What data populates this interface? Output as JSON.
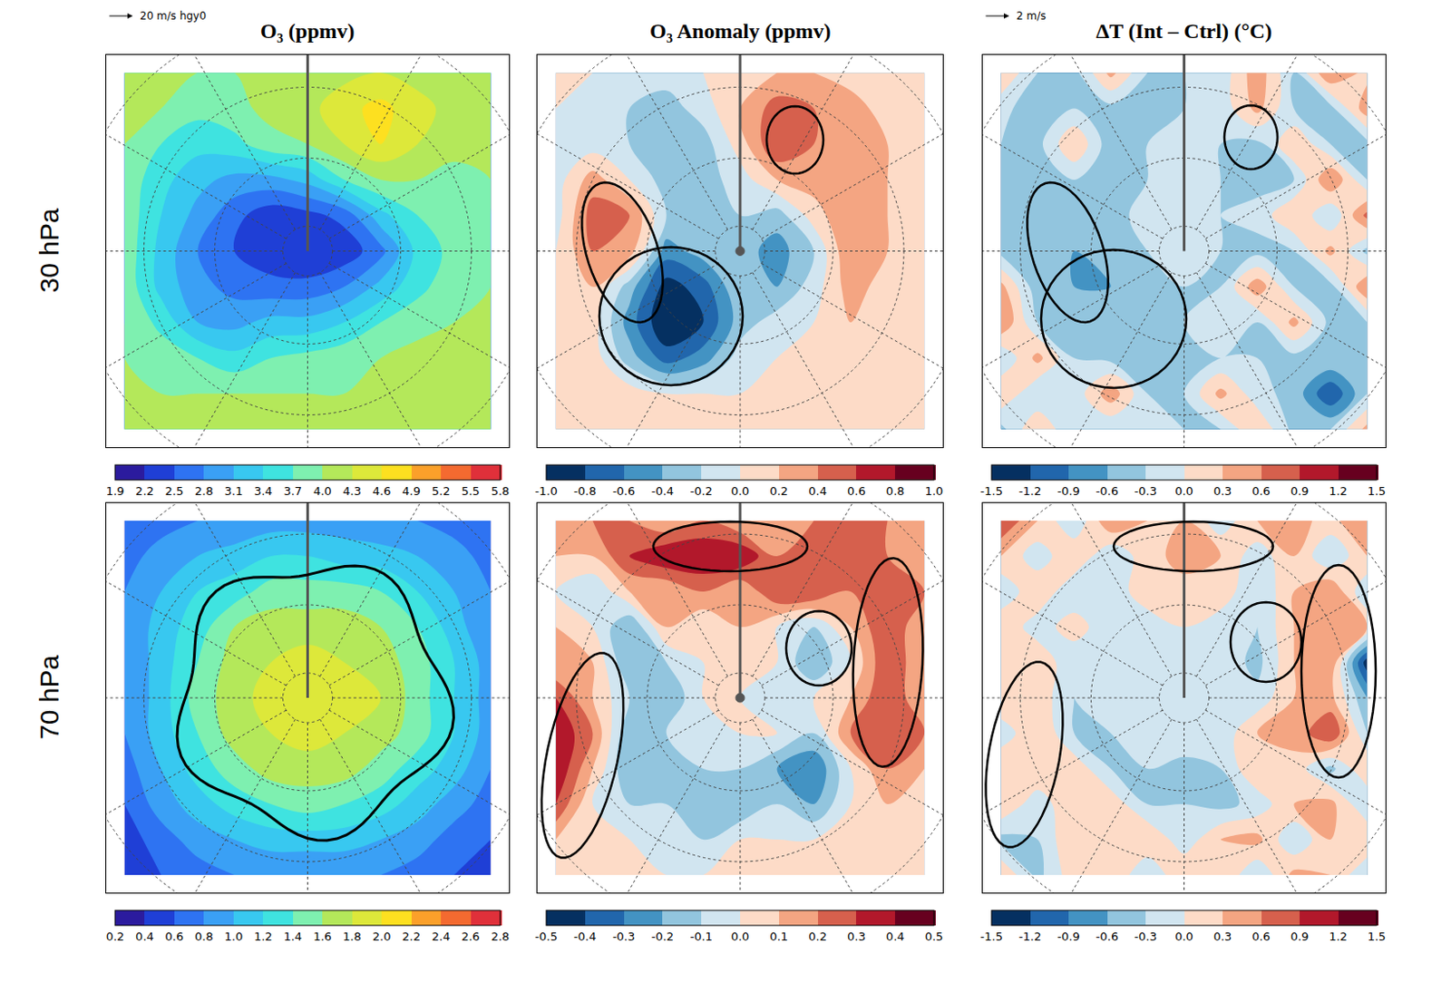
{
  "column_titles": [
    "O₃ (ppmv)",
    "O₃ Anomaly (ppmv)",
    "ΔT (Int – Ctrl) (°C)"
  ],
  "row_labels": [
    "30 hPa",
    "70 hPa"
  ],
  "vector_keys": [
    "20 m/s hgy0",
    "2 m/s"
  ],
  "chart_data": [
    {
      "type": "contour",
      "tick_labels": false,
      "zlim": [
        1.9,
        5.8
      ],
      "zticks": [
        1.9,
        2.2,
        2.5,
        2.8,
        3.1,
        3.4,
        3.7,
        {
          "value": 4,
          "label": "4.0"
        },
        4.3,
        4.6,
        4.9,
        5.2,
        5.5,
        5.8
      ],
      "colors": [
        "#2b1b9e",
        "#1f3fd6",
        "#2e73f2",
        "#3aa0f5",
        "#38c8f0",
        "#3fe3e0",
        "#7ef0b0",
        "#b4e85a",
        "#dde83a",
        "#fde020",
        "#fba02a",
        "#f46a30",
        "#e0303a"
      ],
      "z": [
        [
          4.1,
          4.1,
          4.0,
          4.0,
          4.1,
          4.2,
          4.2,
          4.3,
          4.2,
          4.1,
          4.1
        ],
        [
          4.0,
          4.0,
          3.8,
          3.9,
          4.1,
          4.2,
          4.5,
          4.7,
          4.4,
          4.2,
          4.1
        ],
        [
          4.0,
          3.7,
          3.5,
          3.6,
          3.9,
          4.0,
          4.3,
          4.6,
          4.3,
          4.1,
          4.0
        ],
        [
          3.9,
          3.5,
          3.2,
          3.0,
          3.0,
          3.2,
          3.7,
          4.0,
          4.0,
          3.9,
          4.0
        ],
        [
          3.9,
          3.4,
          3.0,
          2.6,
          2.3,
          2.4,
          2.6,
          3.3,
          3.7,
          3.8,
          4.0
        ],
        [
          3.9,
          3.3,
          2.8,
          2.5,
          2.3,
          2.2,
          2.3,
          2.7,
          3.5,
          3.8,
          4.0
        ],
        [
          3.9,
          3.3,
          2.9,
          2.7,
          2.6,
          2.6,
          2.8,
          3.2,
          3.6,
          3.9,
          4.0
        ],
        [
          4.0,
          3.6,
          3.1,
          3.0,
          3.2,
          3.2,
          3.4,
          3.7,
          3.9,
          4.0,
          4.1
        ],
        [
          4.0,
          3.9,
          3.7,
          3.5,
          3.7,
          3.8,
          3.9,
          4.0,
          4.1,
          4.1,
          4.1
        ],
        [
          4.1,
          4.0,
          4.0,
          4.0,
          4.0,
          4.0,
          4.0,
          4.0,
          4.1,
          4.1,
          4.1
        ],
        [
          4.0,
          4.1,
          4.1,
          4.1,
          4.1,
          4.1,
          4.1,
          4.1,
          4.1,
          4.1,
          4.0
        ]
      ]
    },
    {
      "type": "contour",
      "tick_labels": false,
      "zlim": [
        -1,
        1
      ],
      "zticks": [
        {
          "value": -1,
          "label": "-1.0"
        },
        -0.8,
        -0.6,
        -0.4,
        -0.2,
        {
          "value": 0,
          "label": "0.0"
        },
        0.2,
        0.4,
        0.6,
        0.8,
        {
          "value": 1,
          "label": "1.0"
        }
      ],
      "colors": [
        "#053061",
        "#2166ac",
        "#4393c3",
        "#92c5de",
        "#d1e5f0",
        "#fddbc7",
        "#f4a582",
        "#d6604d",
        "#b2182b",
        "#67001f"
      ],
      "z": [
        [
          0.1,
          0.0,
          -0.1,
          -0.1,
          0.0,
          0.1,
          0.2,
          0.2,
          0.1,
          0.1,
          0.1
        ],
        [
          0.0,
          -0.1,
          -0.2,
          -0.3,
          -0.1,
          0.2,
          0.5,
          0.4,
          0.3,
          0.1,
          0.1
        ],
        [
          -0.1,
          -0.1,
          -0.2,
          -0.4,
          -0.3,
          0.1,
          0.6,
          0.4,
          0.3,
          0.2,
          0.1
        ],
        [
          -0.1,
          0.3,
          0.0,
          -0.3,
          -0.3,
          -0.1,
          0.2,
          0.3,
          0.3,
          0.2,
          0.0
        ],
        [
          -0.1,
          0.5,
          0.4,
          -0.2,
          -0.3,
          -0.2,
          -0.3,
          0.1,
          0.4,
          0.2,
          0.0
        ],
        [
          0.0,
          0.4,
          0.3,
          -0.5,
          -0.3,
          -0.3,
          -0.5,
          -0.2,
          0.4,
          0.2,
          0.0
        ],
        [
          0.0,
          0.2,
          -0.3,
          -0.9,
          -0.7,
          -0.2,
          -0.4,
          -0.1,
          0.3,
          0.1,
          0.0
        ],
        [
          0.1,
          0.1,
          -0.5,
          -1.0,
          -0.8,
          -0.3,
          -0.1,
          0.0,
          0.2,
          0.1,
          0.1
        ],
        [
          0.1,
          0.1,
          -0.3,
          -0.7,
          -0.5,
          -0.1,
          0.0,
          0.0,
          0.1,
          0.1,
          0.1
        ],
        [
          0.1,
          0.1,
          0.1,
          0.0,
          0.0,
          0.0,
          0.0,
          0.1,
          0.1,
          0.1,
          0.1
        ],
        [
          0.1,
          0.1,
          0.1,
          0.1,
          0.0,
          0.0,
          0.1,
          0.1,
          0.1,
          0.1,
          0.1
        ]
      ]
    },
    {
      "type": "contour",
      "tick_labels": false,
      "zlim": [
        -1.5,
        1.5
      ],
      "zticks": [
        -1.5,
        -1.2,
        -0.9,
        -0.6,
        -0.3,
        {
          "value": 0,
          "label": "0.0"
        },
        0.3,
        0.6,
        0.9,
        1.2,
        1.5
      ],
      "colors": [
        "#053061",
        "#2166ac",
        "#4393c3",
        "#92c5de",
        "#d1e5f0",
        "#fddbc7",
        "#f4a582",
        "#d6604d",
        "#b2182b",
        "#67001f"
      ],
      "z": [
        [
          0.3,
          -0.3,
          -0.4,
          0.4,
          -0.3,
          -0.3,
          -0.2,
          0.5,
          -0.3,
          0.6,
          0.2
        ],
        [
          -0.2,
          -0.5,
          -0.3,
          -0.4,
          -0.4,
          -0.3,
          -0.2,
          0.4,
          -0.3,
          -0.4,
          0.5
        ],
        [
          -0.3,
          -0.4,
          0.3,
          -0.5,
          -0.3,
          -0.2,
          -0.3,
          -0.4,
          0.3,
          -0.3,
          -0.4
        ],
        [
          -0.4,
          -0.3,
          -0.3,
          -0.4,
          -0.3,
          -0.2,
          -0.3,
          -0.4,
          -0.3,
          0.6,
          -0.3
        ],
        [
          -0.3,
          -0.4,
          -0.5,
          -0.4,
          -0.2,
          -0.2,
          -0.3,
          -0.2,
          0.3,
          -0.3,
          0.7
        ],
        [
          -0.4,
          -0.5,
          -0.6,
          -0.5,
          -0.3,
          -0.2,
          -0.3,
          -0.4,
          -0.3,
          0.4,
          -0.4
        ],
        [
          0.4,
          -0.5,
          -0.6,
          -0.6,
          -0.4,
          -0.3,
          -0.3,
          0.5,
          -0.3,
          -0.4,
          0.6
        ],
        [
          0.6,
          -0.3,
          -0.4,
          -0.5,
          -0.6,
          -0.3,
          -0.2,
          -0.3,
          0.4,
          -0.4,
          -0.3
        ],
        [
          -0.3,
          0.4,
          -0.3,
          -0.4,
          -0.3,
          -0.4,
          -0.3,
          -0.3,
          -0.4,
          -0.3,
          -0.5
        ],
        [
          0.3,
          -0.3,
          -0.2,
          0.5,
          -0.3,
          -0.3,
          0.4,
          -0.2,
          -0.4,
          -1.2,
          -0.3
        ],
        [
          -0.4,
          0.3,
          -0.3,
          -0.3,
          -0.2,
          -0.3,
          -0.3,
          0.3,
          -0.4,
          -0.3,
          0.4
        ]
      ]
    },
    {
      "type": "contour",
      "tick_labels": false,
      "zlim": [
        0.2,
        2.8
      ],
      "zticks": [
        0.2,
        0.4,
        0.6,
        0.8,
        {
          "value": 1,
          "label": "1.0"
        },
        1.2,
        1.4,
        1.6,
        1.8,
        {
          "value": 2,
          "label": "2.0"
        },
        2.2,
        2.4,
        2.6,
        2.8
      ],
      "colors": [
        "#2b1b9e",
        "#1f3fd6",
        "#2e73f2",
        "#3aa0f5",
        "#38c8f0",
        "#3fe3e0",
        "#7ef0b0",
        "#b4e85a",
        "#dde83a",
        "#fde020",
        "#fba02a",
        "#f46a30",
        "#e0303a"
      ],
      "z": [
        [
          0.7,
          0.7,
          0.8,
          0.8,
          0.9,
          0.9,
          0.9,
          0.8,
          0.8,
          0.7,
          0.7
        ],
        [
          0.7,
          0.9,
          1.0,
          1.1,
          1.2,
          1.2,
          1.1,
          1.1,
          1.0,
          0.9,
          0.7
        ],
        [
          0.8,
          1.0,
          1.2,
          1.3,
          1.5,
          1.5,
          1.5,
          1.4,
          1.2,
          1.0,
          0.8
        ],
        [
          0.8,
          1.1,
          1.3,
          1.6,
          1.7,
          1.7,
          1.7,
          1.6,
          1.4,
          1.1,
          0.8
        ],
        [
          0.8,
          1.1,
          1.4,
          1.7,
          1.8,
          1.9,
          1.8,
          1.7,
          1.5,
          1.2,
          0.9
        ],
        [
          0.8,
          1.1,
          1.5,
          1.7,
          1.9,
          2.0,
          1.9,
          1.8,
          1.5,
          1.2,
          0.9
        ],
        [
          0.8,
          1.1,
          1.4,
          1.7,
          1.8,
          1.9,
          1.8,
          1.7,
          1.5,
          1.2,
          0.9
        ],
        [
          0.7,
          1.0,
          1.3,
          1.5,
          1.7,
          1.7,
          1.7,
          1.5,
          1.3,
          1.1,
          0.8
        ],
        [
          0.6,
          0.9,
          1.1,
          1.3,
          1.4,
          1.5,
          1.4,
          1.3,
          1.1,
          0.9,
          0.7
        ],
        [
          0.5,
          0.7,
          0.9,
          1.0,
          1.1,
          1.1,
          1.1,
          1.0,
          0.9,
          0.7,
          0.6
        ],
        [
          0.5,
          0.6,
          0.7,
          0.8,
          0.8,
          0.8,
          0.8,
          0.8,
          0.7,
          0.6,
          0.5
        ]
      ]
    },
    {
      "type": "contour",
      "tick_labels": false,
      "zlim": [
        -0.5,
        0.5
      ],
      "zticks": [
        -0.5,
        -0.4,
        -0.3,
        -0.2,
        -0.1,
        {
          "value": 0,
          "label": "0.0"
        },
        0.1,
        0.2,
        0.3,
        0.4,
        0.5
      ],
      "colors": [
        "#053061",
        "#2166ac",
        "#4393c3",
        "#92c5de",
        "#d1e5f0",
        "#fddbc7",
        "#f4a582",
        "#d6604d",
        "#b2182b",
        "#67001f"
      ],
      "z": [
        [
          0.1,
          0.2,
          0.2,
          0.1,
          0.2,
          0.1,
          0.1,
          0.2,
          0.2,
          0.2,
          0.1
        ],
        [
          0.1,
          0.1,
          0.3,
          0.4,
          0.4,
          0.4,
          0.2,
          0.2,
          0.3,
          0.2,
          0.1
        ],
        [
          0.0,
          -0.1,
          0.1,
          0.1,
          0.2,
          0.1,
          0.3,
          0.3,
          0.2,
          0.3,
          0.2
        ],
        [
          0.1,
          0.0,
          -0.2,
          0.1,
          0.0,
          0.1,
          0.0,
          -0.1,
          0.1,
          0.3,
          0.1
        ],
        [
          0.1,
          0.1,
          -0.2,
          -0.1,
          0.0,
          0.0,
          0.0,
          -0.2,
          0.0,
          0.3,
          0.1
        ],
        [
          0.3,
          0.1,
          -0.1,
          -0.2,
          0.0,
          0.0,
          -0.1,
          0.0,
          0.1,
          0.3,
          0.1
        ],
        [
          0.4,
          0.2,
          -0.2,
          -0.1,
          -0.1,
          0.0,
          0.0,
          -0.1,
          0.2,
          0.3,
          0.2
        ],
        [
          0.4,
          0.1,
          -0.2,
          -0.2,
          -0.1,
          -0.1,
          -0.2,
          -0.3,
          0.0,
          0.2,
          0.1
        ],
        [
          0.3,
          0.0,
          -0.1,
          -0.1,
          -0.2,
          -0.2,
          -0.1,
          -0.2,
          0.0,
          0.1,
          0.0
        ],
        [
          0.1,
          0.0,
          0.0,
          -0.1,
          -0.1,
          0.0,
          0.0,
          0.0,
          0.0,
          0.0,
          0.0
        ],
        [
          0.0,
          0.0,
          0.0,
          0.0,
          0.0,
          0.0,
          0.0,
          0.0,
          0.0,
          0.0,
          0.0
        ]
      ]
    },
    {
      "type": "contour",
      "tick_labels": false,
      "zlim": [
        -1.5,
        1.5
      ],
      "zticks": [
        -1.5,
        -1.2,
        -0.9,
        -0.6,
        -0.3,
        {
          "value": 0,
          "label": "0.0"
        },
        0.3,
        0.6,
        0.9,
        1.2,
        1.5
      ],
      "colors": [
        "#053061",
        "#2166ac",
        "#4393c3",
        "#92c5de",
        "#d1e5f0",
        "#fddbc7",
        "#f4a582",
        "#d6604d",
        "#b2182b",
        "#67001f"
      ],
      "z": [
        [
          0.9,
          0.3,
          -0.3,
          0.6,
          0.3,
          0.3,
          -0.2,
          0.3,
          0.4,
          0.2,
          0.6
        ],
        [
          0.3,
          -0.2,
          0.3,
          -0.3,
          0.2,
          0.4,
          0.3,
          -0.2,
          0.3,
          -0.3,
          0.3
        ],
        [
          -0.3,
          0.3,
          -0.3,
          -0.2,
          0.2,
          0.2,
          0.2,
          -0.3,
          0.3,
          0.6,
          -0.3
        ],
        [
          0.3,
          -0.2,
          0.2,
          -0.3,
          -0.2,
          0.0,
          -0.2,
          -0.3,
          0.3,
          0.4,
          0.3
        ],
        [
          0.2,
          0.3,
          -0.3,
          -0.2,
          -0.1,
          0.0,
          -0.1,
          -0.4,
          0.3,
          0.6,
          -1.4
        ],
        [
          0.3,
          0.2,
          -0.3,
          -0.2,
          -0.1,
          0.0,
          0.0,
          -0.2,
          0.3,
          0.4,
          -0.6
        ],
        [
          -0.2,
          0.3,
          -0.3,
          -0.3,
          -0.2,
          -0.1,
          -0.2,
          0.3,
          0.4,
          0.9,
          -0.3
        ],
        [
          0.3,
          0.3,
          0.2,
          -0.3,
          -0.3,
          -0.4,
          -0.3,
          0.3,
          0.2,
          -0.4,
          0.3
        ],
        [
          0.3,
          -0.2,
          0.3,
          0.2,
          -0.3,
          -0.3,
          -0.4,
          -0.2,
          0.3,
          0.4,
          -0.3
        ],
        [
          -0.4,
          -0.3,
          0.3,
          0.2,
          0.3,
          -0.2,
          0.3,
          0.4,
          -0.3,
          0.3,
          0.3
        ],
        [
          0.3,
          -0.4,
          0.2,
          0.3,
          -0.3,
          0.3,
          0.3,
          -0.3,
          0.4,
          0.3,
          -0.3
        ]
      ]
    }
  ]
}
